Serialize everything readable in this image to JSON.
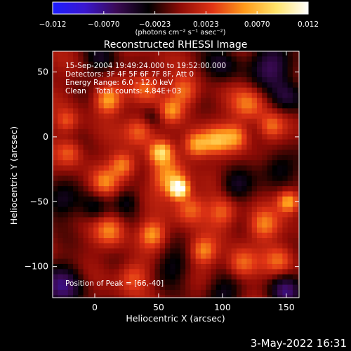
{
  "chart_data": {
    "type": "heatmap",
    "title": "Reconstructed RHESSI Image",
    "xlabel": "Heliocentric X (arcsec)",
    "ylabel": "Heliocentric Y (arcsec)",
    "xlim": [
      -33,
      160
    ],
    "ylim": [
      -124,
      66
    ],
    "x_ticks": [
      0,
      50,
      100,
      150
    ],
    "y_ticks": [
      50,
      0,
      -50,
      -100
    ],
    "colorbar": {
      "label": "(photons cm⁻² s⁻¹ asec⁻²)",
      "range": [
        -0.012,
        0.012
      ],
      "tick_labels": [
        "−0.012",
        "−0.0070",
        "−0.0023",
        "0.0023",
        "0.0070",
        "0.012"
      ],
      "colors": [
        "#1d1dff",
        "#3a17d0",
        "#3b0a55",
        "#000000",
        "#8f0c06",
        "#e03415",
        "#ff9a1a",
        "#ffe36a",
        "#ffffff"
      ]
    },
    "annotations": [
      "15-Sep-2004 19:49:24.000 to 19:52:00.000",
      "Detectors: 3F 4F 5F 6F 7F 8F, Att 0",
      "Energy Range: 6.0 - 12.0 keV",
      "Clean    Total counts: 4.84E+03",
      "Position of Peak = [66,-40]"
    ],
    "peak": {
      "x": 66,
      "y": -40,
      "value": 0.012
    },
    "blobs": [
      {
        "x": 66,
        "y": -40,
        "v": 0.0125,
        "r": 5
      },
      {
        "x": 58,
        "y": -32,
        "v": 0.006,
        "r": 9
      },
      {
        "x": 75,
        "y": -55,
        "v": 0.005,
        "r": 8
      },
      {
        "x": 52,
        "y": -12,
        "v": 0.008,
        "r": 6
      },
      {
        "x": 80,
        "y": -6,
        "v": 0.0075,
        "r": 7
      },
      {
        "x": 95,
        "y": -3,
        "v": 0.006,
        "r": 7
      },
      {
        "x": 110,
        "y": 0,
        "v": 0.0055,
        "r": 7
      },
      {
        "x": 22,
        "y": -22,
        "v": 0.006,
        "r": 7
      },
      {
        "x": 8,
        "y": -35,
        "v": 0.0045,
        "r": 7
      },
      {
        "x": 35,
        "y": 5,
        "v": 0.005,
        "r": 8
      },
      {
        "x": 10,
        "y": 28,
        "v": 0.0065,
        "r": 7
      },
      {
        "x": 40,
        "y": 38,
        "v": 0.005,
        "r": 8
      },
      {
        "x": 70,
        "y": 35,
        "v": 0.005,
        "r": 8
      },
      {
        "x": 60,
        "y": 20,
        "v": 0.0045,
        "r": 6
      },
      {
        "x": 120,
        "y": 25,
        "v": 0.005,
        "r": 9
      },
      {
        "x": 138,
        "y": 8,
        "v": 0.0045,
        "r": 7
      },
      {
        "x": 152,
        "y": -50,
        "v": 0.0075,
        "r": 6
      },
      {
        "x": 132,
        "y": -68,
        "v": 0.005,
        "r": 8
      },
      {
        "x": 100,
        "y": -58,
        "v": 0.0045,
        "r": 8
      },
      {
        "x": 45,
        "y": -75,
        "v": 0.006,
        "r": 7
      },
      {
        "x": 12,
        "y": -72,
        "v": 0.005,
        "r": 8
      },
      {
        "x": 85,
        "y": -88,
        "v": 0.0055,
        "r": 7
      },
      {
        "x": 115,
        "y": -98,
        "v": 0.005,
        "r": 8
      },
      {
        "x": 145,
        "y": -95,
        "v": 0.0045,
        "r": 8
      },
      {
        "x": 30,
        "y": -108,
        "v": 0.004,
        "r": 8
      },
      {
        "x": -20,
        "y": -12,
        "v": 0.004,
        "r": 7
      },
      {
        "x": -22,
        "y": 12,
        "v": 0.0035,
        "r": 6
      },
      {
        "x": 140,
        "y": 55,
        "v": -0.006,
        "r": 12
      },
      {
        "x": 150,
        "y": 30,
        "v": -0.0045,
        "r": 9
      },
      {
        "x": 100,
        "y": 55,
        "v": -0.004,
        "r": 10
      },
      {
        "x": 145,
        "y": -25,
        "v": -0.0045,
        "r": 10
      },
      {
        "x": 110,
        "y": -38,
        "v": -0.004,
        "r": 9
      },
      {
        "x": -25,
        "y": -115,
        "v": -0.006,
        "r": 12
      },
      {
        "x": -28,
        "y": -50,
        "v": -0.004,
        "r": 10
      },
      {
        "x": 0,
        "y": -55,
        "v": -0.0035,
        "r": 8
      },
      {
        "x": 25,
        "y": -50,
        "v": -0.003,
        "r": 7
      },
      {
        "x": 60,
        "y": -100,
        "v": -0.0035,
        "r": 10
      },
      {
        "x": 100,
        "y": -120,
        "v": -0.004,
        "r": 10
      },
      {
        "x": 150,
        "y": -118,
        "v": -0.006,
        "r": 9
      },
      {
        "x": 5,
        "y": 60,
        "v": -0.0035,
        "r": 9
      },
      {
        "x": 45,
        "y": 15,
        "v": -0.0025,
        "r": 6
      }
    ]
  },
  "timestamp": "3-May-2022 16:31"
}
